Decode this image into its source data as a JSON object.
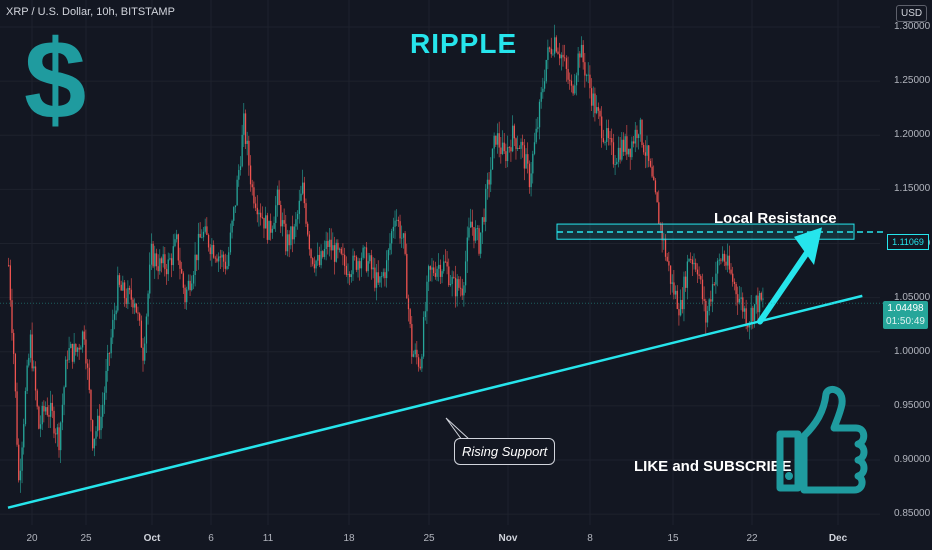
{
  "header": {
    "symbol_line": "XRP / U.S. Dollar, 10h, BITSTAMP"
  },
  "title": "RIPPLE",
  "currency_button": "USD",
  "annotations": {
    "dollar_sign": "$",
    "local_resistance": "Local Resistance",
    "rising_support": "Rising Support",
    "like_subscribe": "LIKE and SUBSCRIBE"
  },
  "icons": {
    "logo": "dollar-sign-icon",
    "thumb": "thumbs-up-icon",
    "arrow": "arrow-up-right-icon"
  },
  "colors": {
    "bg": "#131722",
    "up": "#26a69a",
    "down": "#ef5350",
    "accent": "#26e5ec",
    "thumb": "#1f9b9f"
  },
  "price_axis": {
    "ticks": [
      "1.30000",
      "1.25000",
      "1.20000",
      "1.15000",
      "1.10000",
      "1.05000",
      "1.00000",
      "0.95000",
      "0.90000",
      "0.85000"
    ],
    "current_price": "1.04498",
    "countdown": "01:50:49",
    "resistance_price": "1.11069"
  },
  "time_axis": {
    "ticks": [
      {
        "label": "20",
        "bold": false
      },
      {
        "label": "25",
        "bold": false
      },
      {
        "label": "Oct",
        "bold": true
      },
      {
        "label": "6",
        "bold": false
      },
      {
        "label": "11",
        "bold": false
      },
      {
        "label": "18",
        "bold": false
      },
      {
        "label": "25",
        "bold": false
      },
      {
        "label": "Nov",
        "bold": true
      },
      {
        "label": "8",
        "bold": false
      },
      {
        "label": "15",
        "bold": false
      },
      {
        "label": "22",
        "bold": false
      },
      {
        "label": "Dec",
        "bold": true
      }
    ]
  },
  "chart_data": {
    "type": "candlestick",
    "ylim": [
      0.84,
      1.325
    ],
    "grid": true,
    "anchors": [
      [
        0,
        1.08
      ],
      [
        3,
        1.0
      ],
      [
        6,
        0.88
      ],
      [
        10,
        0.96
      ],
      [
        13,
        1.01
      ],
      [
        18,
        0.93
      ],
      [
        22,
        0.95
      ],
      [
        26,
        0.94
      ],
      [
        30,
        0.92
      ],
      [
        35,
        1.0
      ],
      [
        40,
        1.0
      ],
      [
        45,
        1.02
      ],
      [
        50,
        0.92
      ],
      [
        55,
        0.94
      ],
      [
        60,
        1.0
      ],
      [
        65,
        1.06
      ],
      [
        70,
        1.05
      ],
      [
        75,
        1.05
      ],
      [
        80,
        1.0
      ],
      [
        85,
        1.09
      ],
      [
        90,
        1.08
      ],
      [
        95,
        1.08
      ],
      [
        100,
        1.1
      ],
      [
        105,
        1.05
      ],
      [
        110,
        1.08
      ],
      [
        115,
        1.11
      ],
      [
        120,
        1.1
      ],
      [
        125,
        1.09
      ],
      [
        130,
        1.08
      ],
      [
        135,
        1.14
      ],
      [
        140,
        1.21
      ],
      [
        145,
        1.15
      ],
      [
        150,
        1.13
      ],
      [
        155,
        1.11
      ],
      [
        160,
        1.14
      ],
      [
        165,
        1.1
      ],
      [
        170,
        1.11
      ],
      [
        175,
        1.15
      ],
      [
        180,
        1.09
      ],
      [
        185,
        1.08
      ],
      [
        190,
        1.1
      ],
      [
        195,
        1.09
      ],
      [
        200,
        1.08
      ],
      [
        205,
        1.08
      ],
      [
        210,
        1.09
      ],
      [
        215,
        1.08
      ],
      [
        220,
        1.06
      ],
      [
        225,
        1.08
      ],
      [
        230,
        1.13
      ],
      [
        235,
        1.1
      ],
      [
        240,
        1.0
      ],
      [
        245,
        0.99
      ],
      [
        250,
        1.07
      ],
      [
        255,
        1.08
      ],
      [
        260,
        1.08
      ],
      [
        265,
        1.06
      ],
      [
        270,
        1.06
      ],
      [
        275,
        1.12
      ],
      [
        280,
        1.1
      ],
      [
        285,
        1.15
      ],
      [
        290,
        1.2
      ],
      [
        295,
        1.18
      ],
      [
        300,
        1.2
      ],
      [
        305,
        1.19
      ],
      [
        310,
        1.16
      ],
      [
        315,
        1.21
      ],
      [
        320,
        1.27
      ],
      [
        325,
        1.29
      ],
      [
        330,
        1.27
      ],
      [
        335,
        1.24
      ],
      [
        340,
        1.28
      ],
      [
        345,
        1.25
      ],
      [
        350,
        1.22
      ],
      [
        355,
        1.2
      ],
      [
        360,
        1.18
      ],
      [
        365,
        1.19
      ],
      [
        370,
        1.19
      ],
      [
        375,
        1.21
      ],
      [
        380,
        1.18
      ],
      [
        385,
        1.14
      ],
      [
        390,
        1.1
      ],
      [
        395,
        1.06
      ],
      [
        400,
        1.04
      ],
      [
        405,
        1.09
      ],
      [
        410,
        1.08
      ],
      [
        415,
        1.03
      ],
      [
        420,
        1.07
      ],
      [
        425,
        1.09
      ],
      [
        430,
        1.07
      ],
      [
        435,
        1.05
      ],
      [
        440,
        1.03
      ],
      [
        445,
        1.045
      ]
    ],
    "support_line": {
      "label": "Rising Support",
      "from": [
        0,
        0.856
      ],
      "to": [
        449,
        1.025
      ]
    },
    "resistance_zone": {
      "label": "Local Resistance",
      "low": 1.104,
      "high": 1.118,
      "from": 315,
      "to": 449,
      "level": 1.11069
    },
    "projection_arrow": {
      "from": [
        412,
        1.03
      ],
      "to": [
        436,
        1.105
      ]
    },
    "current_price": 1.04498
  }
}
